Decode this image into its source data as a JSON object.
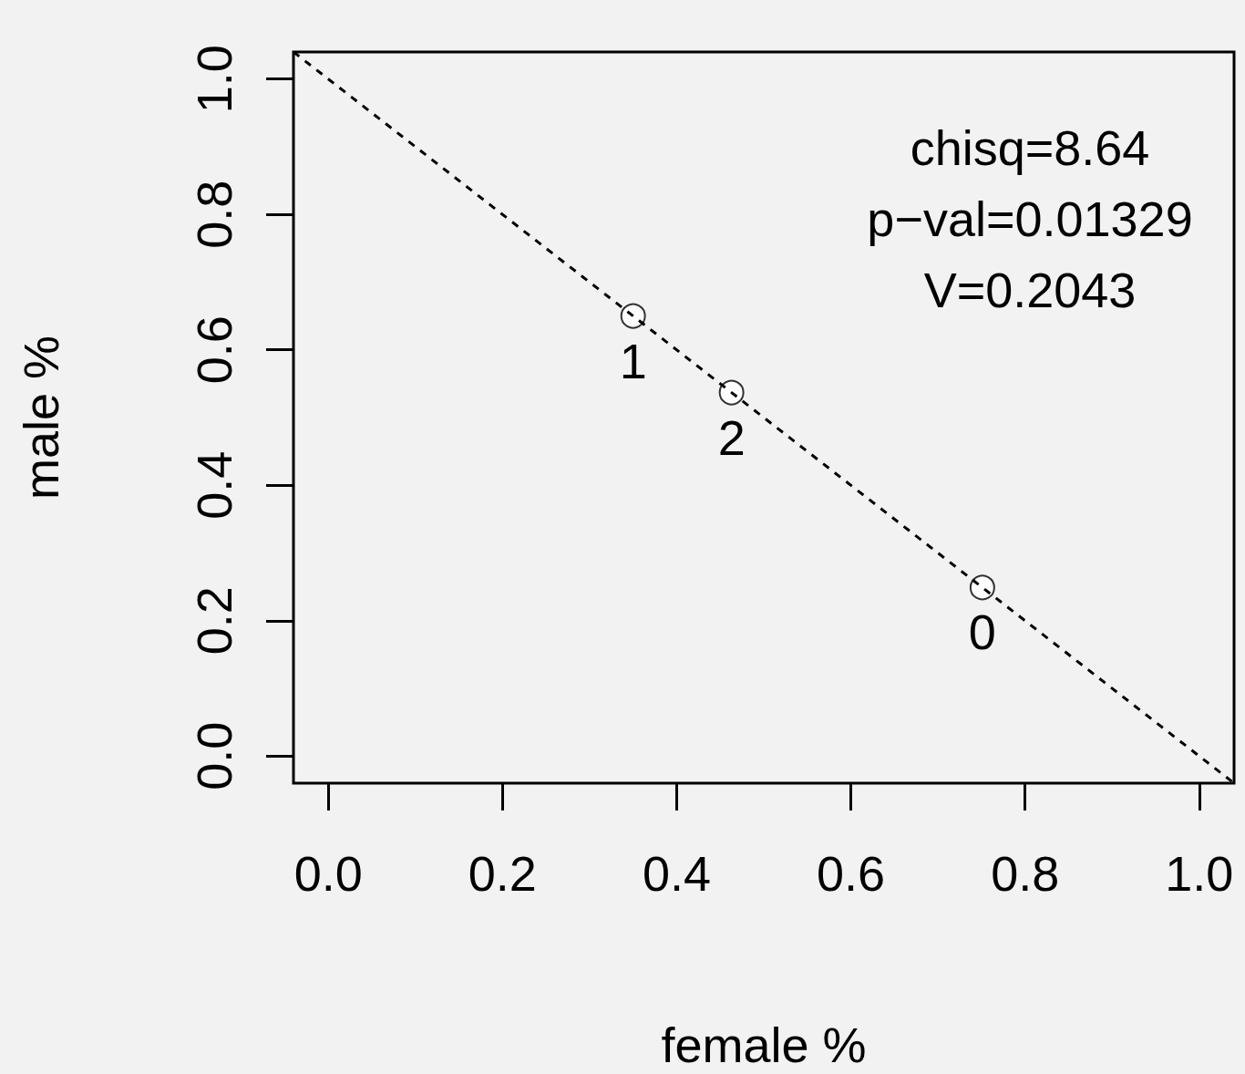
{
  "chart_data": {
    "type": "scatter",
    "xlabel": "female %",
    "ylabel": "male %",
    "annotations": [
      "chisq=8.64",
      "p−val=0.01329",
      "V=0.2043",
      {
        "text": "1",
        "x": 0.35,
        "y": 0.65
      },
      {
        "text": "2",
        "x": 0.463,
        "y": 0.537
      },
      {
        "text": "0",
        "x": 0.751,
        "y": 0.249
      }
    ],
    "xlim": [
      -0.04,
      1.04
    ],
    "ylim": [
      -0.04,
      1.04
    ],
    "xticks": [
      {
        "value": 0,
        "label": "0.0"
      },
      0.2,
      0.4,
      0.6,
      0.8,
      {
        "value": 1,
        "label": "1.0"
      }
    ],
    "yticks": [
      {
        "value": 0,
        "label": "0.0"
      },
      0.2,
      0.4,
      0.6,
      0.8,
      {
        "value": 1,
        "label": "1.0"
      }
    ],
    "series": [
      {
        "color": "#000000",
        "marker": "circle",
        "x": [
          0.35,
          0.463,
          0.751
        ],
        "values": [
          0.65,
          0.537,
          0.249
        ]
      },
      {
        "type": "line",
        "color": "#000000",
        "marker": "none",
        "line_style": "dashed",
        "x": [
          -0.04,
          1.04
        ],
        "values": [
          1.04,
          -0.04
        ]
      }
    ]
  }
}
